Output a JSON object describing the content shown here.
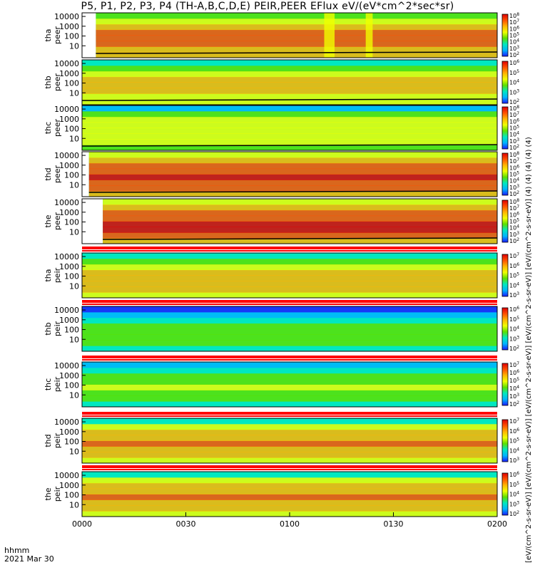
{
  "title": "P5, P1, P2, P3, P4 (TH-A,B,C,D,E) PEIR,PEER EFlux eV/(eV*cm^2*sec*sr)",
  "x_axis": {
    "label_line1": "hhmm",
    "label_line2": "2021 Mar 30",
    "ticks": [
      "0000",
      "0030",
      "0100",
      "0130",
      "0200"
    ]
  },
  "colorbar_units": "[eV/(cm^2-s-sr-eV)] [eV/(cm^2-s-sr-eV)] [eV/(cm^2-s-sr-eV)] [eV/(cm^2-s-sr-eV)] [eV/(cm^2-s-sr-eV)] (4) (4) (4) (4) (4)",
  "colors": {
    "spectrogram_scale": [
      "#1a1aff",
      "#00b4ff",
      "#00e8c0",
      "#5be000",
      "#f0ff00",
      "#ffb400",
      "#ff5000",
      "#e00000"
    ],
    "separator_line": "#ff0000",
    "low_energy_trace": "#000000"
  },
  "chart_data": [
    {
      "type": "heatmap",
      "panel": "tha peer",
      "ylabel": "tha\npeer",
      "y_scale": "log",
      "y_ticks": [
        "10",
        "100",
        "1000",
        "10000"
      ],
      "cb_ticks": [
        "10^2",
        "10^3",
        "10^4",
        "10^5",
        "10^6",
        "10^7",
        "10^8"
      ],
      "data_start": "0004",
      "hot": [
        [
          "0004",
          "0200",
          0.62
        ]
      ],
      "cool_gaps": [
        [
          "0110",
          "0113"
        ],
        [
          "0122",
          "0124"
        ]
      ]
    },
    {
      "type": "heatmap",
      "panel": "thb peer",
      "ylabel": "thb\npeer",
      "y_scale": "log",
      "y_ticks": [
        "10",
        "100",
        "1000",
        "10000"
      ],
      "cb_ticks": [
        "10^2",
        "10^3",
        "10^4",
        "10^5",
        "10^6"
      ],
      "data_start": "0000",
      "hot": [
        [
          "0000",
          "0200",
          0.48
        ]
      ]
    },
    {
      "type": "heatmap",
      "panel": "thc peer",
      "ylabel": "thc\npeer",
      "y_scale": "log",
      "y_ticks": [
        "10",
        "100",
        "1000",
        "10000"
      ],
      "cb_ticks": [
        "10^2",
        "10^3",
        "10^4",
        "10^5",
        "10^6",
        "10^7",
        "10^8"
      ],
      "data_start": "0000",
      "hot": [
        [
          "0000",
          "0200",
          0.4
        ]
      ]
    },
    {
      "type": "heatmap",
      "panel": "thd peer",
      "ylabel": "thd\npeer",
      "y_scale": "log",
      "y_ticks": [
        "10",
        "100",
        "1000",
        "10000"
      ],
      "cb_ticks": [
        "10^2",
        "10^3",
        "10^4",
        "10^5",
        "10^6",
        "10^7",
        "10^8"
      ],
      "data_start": "0002",
      "hot": [
        [
          "0002",
          "0200",
          0.7
        ]
      ]
    },
    {
      "type": "heatmap",
      "panel": "the peer",
      "ylabel": "the\npeer",
      "y_scale": "log",
      "y_ticks": [
        "10",
        "100",
        "1000",
        "10000"
      ],
      "cb_ticks": [
        "10^2",
        "10^3",
        "10^4",
        "10^5",
        "10^6",
        "10^7",
        "10^8"
      ],
      "data_start": "0006",
      "hot": [
        [
          "0006",
          "0200",
          0.72
        ]
      ]
    },
    {
      "type": "heatmap",
      "panel": "tha peir",
      "ylabel": "tha\npeir",
      "y_scale": "log",
      "y_ticks": [
        "10",
        "100",
        "1000",
        "10000"
      ],
      "cb_ticks": [
        "10^3",
        "10^4",
        "10^5",
        "10^6",
        "10^7"
      ],
      "data_start": "0000",
      "hot": [
        [
          "0000",
          "0200",
          0.52
        ]
      ]
    },
    {
      "type": "heatmap",
      "panel": "thb peir",
      "ylabel": "thb\npeir",
      "y_scale": "log",
      "y_ticks": [
        "10",
        "100",
        "1000",
        "10000"
      ],
      "cb_ticks": [
        "10^2",
        "10^3",
        "10^4",
        "10^5",
        "10^6"
      ],
      "data_start": "0000",
      "hot": [
        [
          "0000",
          "0200",
          0.22
        ]
      ]
    },
    {
      "type": "heatmap",
      "panel": "thc peir",
      "ylabel": "thc\npeir",
      "y_scale": "log",
      "y_ticks": [
        "10",
        "100",
        "1000",
        "10000"
      ],
      "cb_ticks": [
        "10^2",
        "10^3",
        "10^4",
        "10^5",
        "10^6",
        "10^7"
      ],
      "data_start": "0000",
      "hot": [
        [
          "0000",
          "0200",
          0.28
        ]
      ]
    },
    {
      "type": "heatmap",
      "panel": "thd peir",
      "ylabel": "thd\npeir",
      "y_scale": "log",
      "y_ticks": [
        "10",
        "100",
        "1000",
        "10000"
      ],
      "cb_ticks": [
        "10^3",
        "10^4",
        "10^5",
        "10^6",
        "10^7"
      ],
      "data_start": "0000",
      "hot": [
        [
          "0000",
          "0200",
          0.55
        ]
      ]
    },
    {
      "type": "heatmap",
      "panel": "the peir",
      "ylabel": "the\npeir",
      "y_scale": "log",
      "y_ticks": [
        "10",
        "100",
        "1000",
        "10000"
      ],
      "cb_ticks": [
        "10^2",
        "10^3",
        "10^4",
        "10^5",
        "10^6"
      ],
      "data_start": "0000",
      "hot": [
        [
          "0000",
          "0200",
          0.55
        ]
      ]
    }
  ]
}
